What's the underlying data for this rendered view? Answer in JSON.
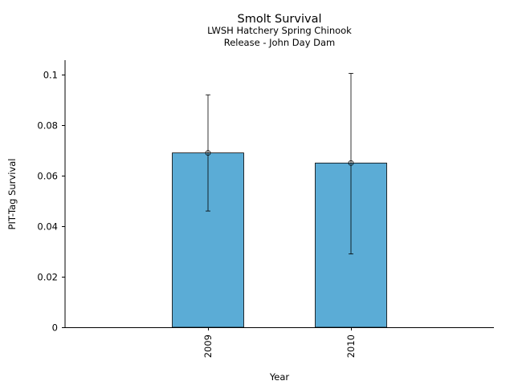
{
  "chart_data": {
    "type": "bar",
    "title": "Smolt Survival",
    "subtitle_lines": [
      "LWSH Hatchery Spring Chinook",
      "Release - John Day Dam"
    ],
    "xlabel": "Year",
    "ylabel": "PIT-Tag Survival",
    "categories": [
      "2009",
      "2010"
    ],
    "values": [
      0.069,
      0.065
    ],
    "error_lower": [
      0.046,
      0.029
    ],
    "error_upper": [
      0.092,
      0.1005
    ],
    "ylim": [
      0,
      0.106
    ],
    "yticks": [
      0,
      0.02,
      0.04,
      0.06,
      0.08,
      0.1
    ],
    "ytick_labels": [
      "0",
      "0.02",
      "0.04",
      "0.06",
      "0.08",
      "0.1"
    ],
    "bar_color": "#5bacd6",
    "grid": false,
    "legend": null
  }
}
